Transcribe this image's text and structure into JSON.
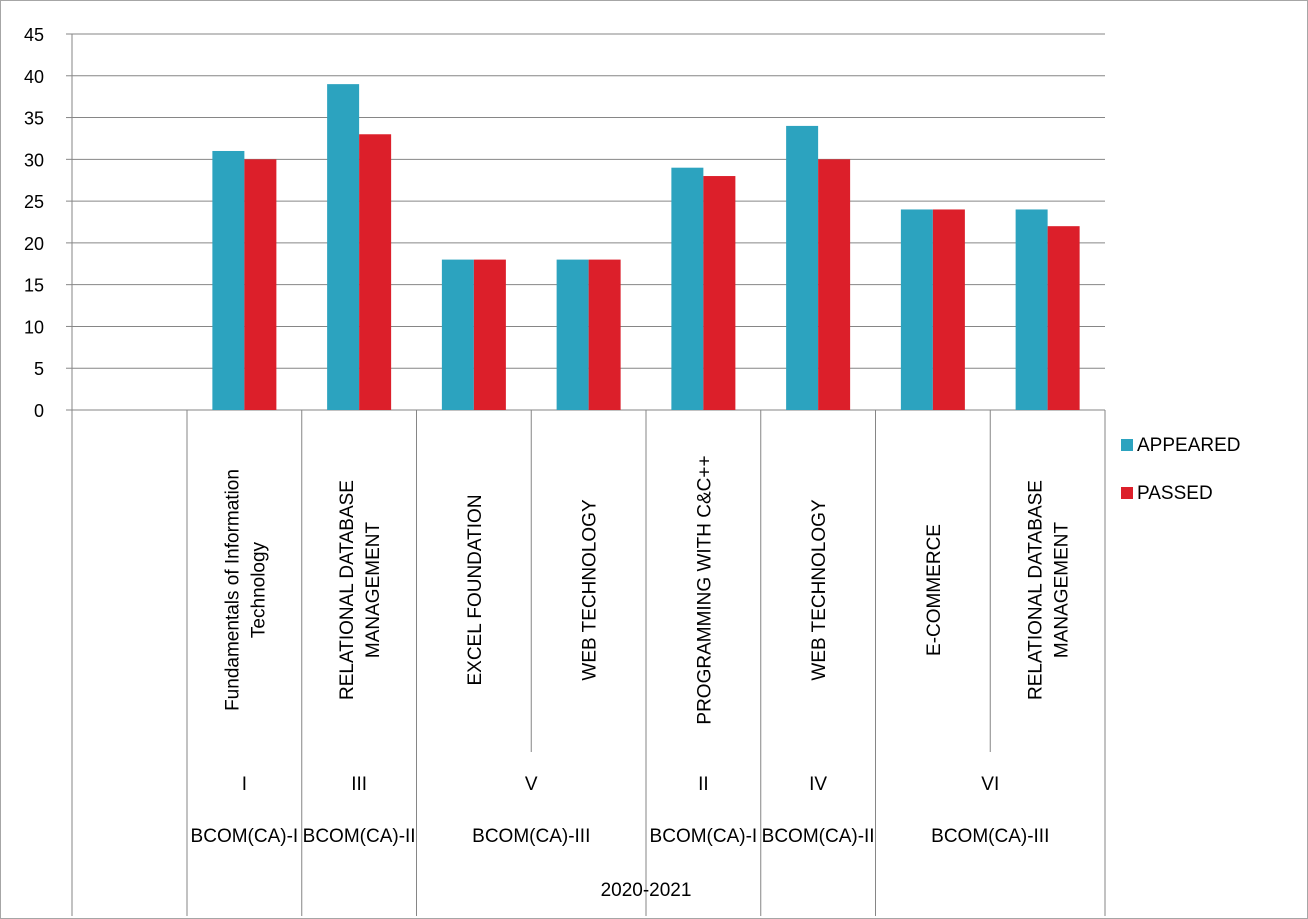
{
  "chart_data": {
    "type": "bar",
    "title": "",
    "xlabel": "",
    "ylabel": "",
    "ylim": [
      0,
      45
    ],
    "yticks": [
      0,
      5,
      10,
      15,
      20,
      25,
      30,
      35,
      40,
      45
    ],
    "grid": true,
    "legend_position": "right",
    "categories": [
      "Fundamentals of Information Technology",
      "RELATIONAL DATABASE MANAGEMENT",
      "EXCEL FOUNDATION",
      "WEB TECHNOLOGY",
      "PROGRAMMING WITH C&C++",
      "WEB TECHNOLOGY",
      "E-COMMERCE",
      "RELATIONAL DATABASE MANAGEMENT"
    ],
    "category_lines": [
      [
        "Fundamentals of Information",
        "Technology"
      ],
      [
        "RELATIONAL DATABASE",
        "MANAGEMENT"
      ],
      [
        "EXCEL FOUNDATION"
      ],
      [
        "WEB TECHNOLOGY"
      ],
      [
        "PROGRAMMING WITH C&C++"
      ],
      [
        "WEB TECHNOLOGY"
      ],
      [
        "E-COMMERCE"
      ],
      [
        "RELATIONAL DATABASE",
        "MANAGEMENT"
      ]
    ],
    "series": [
      {
        "name": "APPEARED",
        "color": "#2ca3bf",
        "values": [
          31,
          39,
          18,
          18,
          29,
          34,
          24,
          24
        ]
      },
      {
        "name": "PASSED",
        "color": "#dc1f2a",
        "values": [
          30,
          33,
          18,
          18,
          28,
          30,
          24,
          22
        ]
      }
    ],
    "group_levels": [
      {
        "labels": [
          "I",
          "III",
          "V",
          "II",
          "IV",
          "VI"
        ],
        "spans": [
          1,
          1,
          2,
          1,
          1,
          2
        ]
      },
      {
        "labels": [
          "BCOM(CA)-I",
          "BCOM(CA)-II",
          "BCOM(CA)-III",
          "BCOM(CA)-I",
          "BCOM(CA)-II",
          "BCOM(CA)-III"
        ],
        "spans": [
          1,
          1,
          2,
          1,
          1,
          2
        ]
      },
      {
        "labels": [
          "2020-2021"
        ],
        "spans": [
          8
        ]
      }
    ]
  }
}
